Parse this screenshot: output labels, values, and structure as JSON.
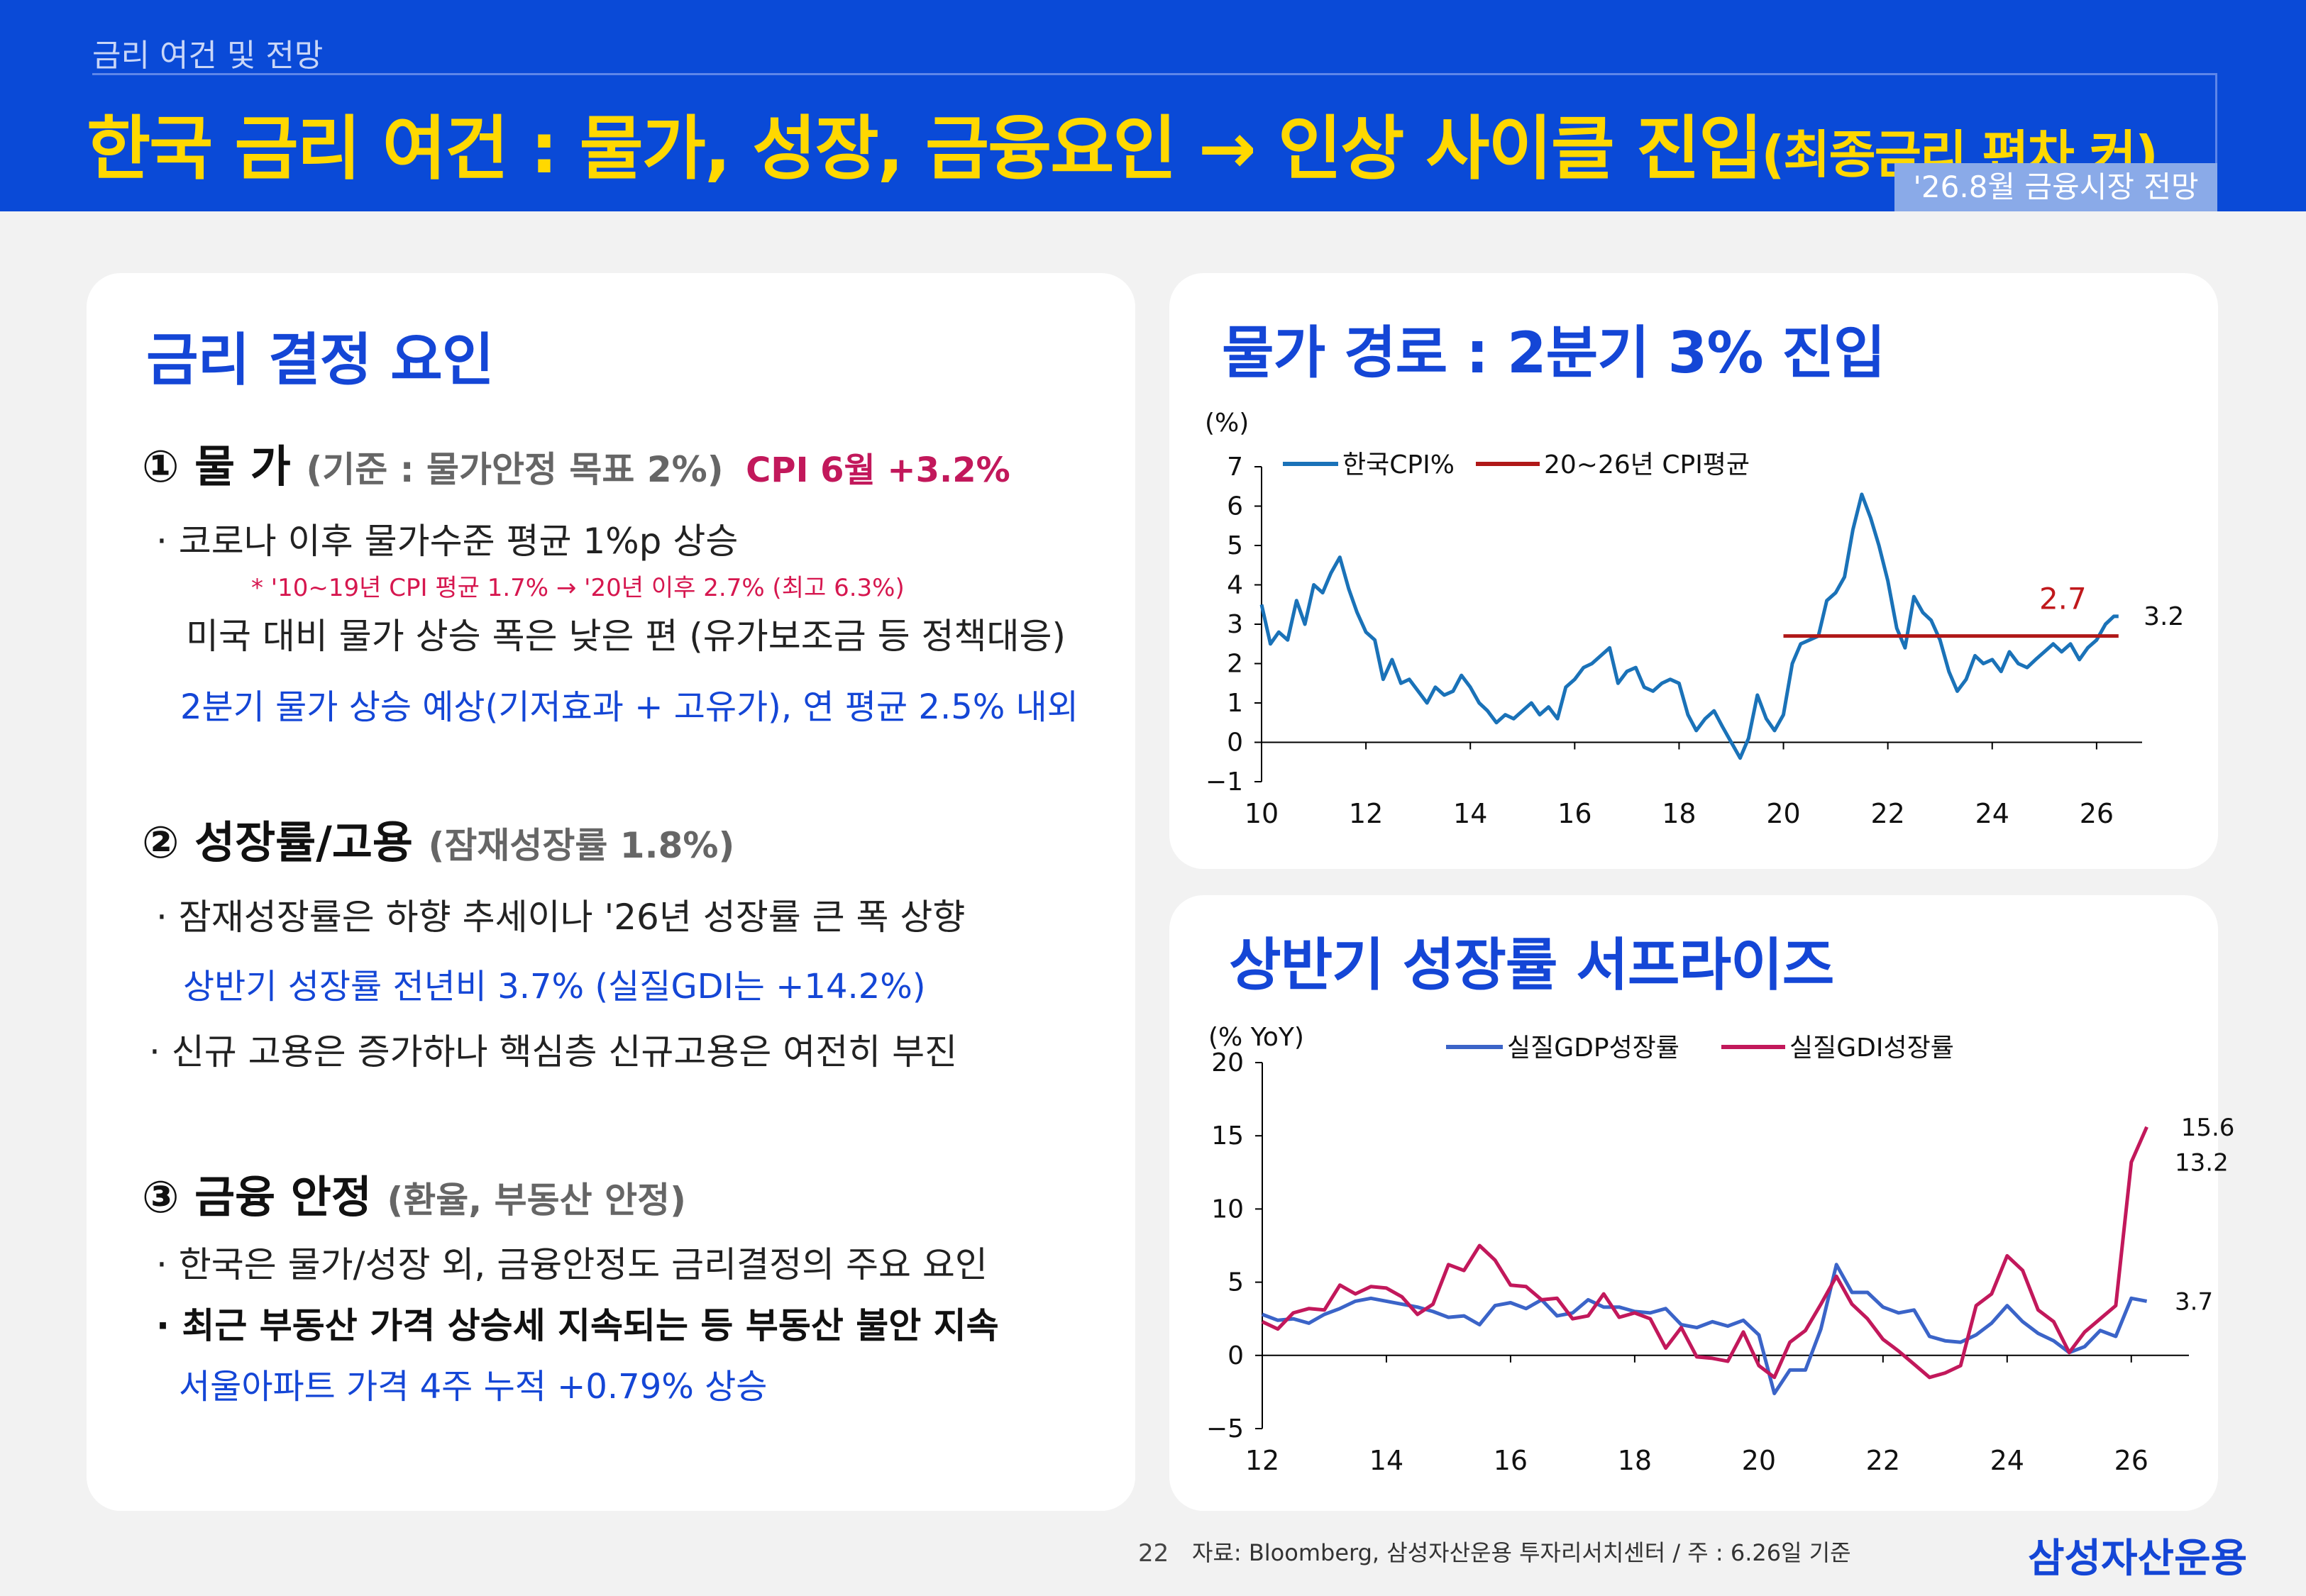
{
  "header": {
    "section": "금리 여건 및 전망",
    "title_main": "한국 금리 여건 : 물가, 성장, 금융요인 → 인상 사이클 진입",
    "title_sub": "(최종금리 편차 커)",
    "report_tag": "'26.8월 금융시장 전망"
  },
  "left_panel": {
    "title": "금리 결정 요인",
    "factor1": {
      "label": "① 물 가",
      "criterion": "(기준 : 물가안정 목표 2%)",
      "highlight": "CPI 6월  +3.2%",
      "bullet1": "· 코로나 이후 물가수준 평균 1%p 상승",
      "note": "* '10~19년 CPI 평균 1.7% → '20년 이후 2.7% (최고 6.3%)",
      "line2": "미국 대비 물가 상승 폭은 낮은 편 (유가보조금 등 정책대응)",
      "blue": "2분기 물가 상승 예상(기저효과 + 고유가), 연 평균 2.5% 내외"
    },
    "factor2": {
      "label": "② 성장률/고용",
      "criterion": "(잠재성장률 1.8%)",
      "bullet1": "· 잠재성장률은 하향 추세이나 '26년 성장률 큰 폭 상향",
      "blue": "상반기 성장률 전년비 3.7% (실질GDI는 +14.2%)",
      "bullet2": "· 신규 고용은 증가하나 핵심층 신규고용은 여전히 부진"
    },
    "factor3": {
      "label": "③ 금융 안정",
      "criterion": "(환율, 부동산 안정)",
      "bullet1": "· 한국은 물가/성장 외, 금융안정도 금리결정의 주요 요인",
      "bullet2": "· 최근 부동산 가격 상승세 지속되는 등 부동산 불안 지속",
      "blue": "서울아파트 가격 4주 누적 +0.79% 상승"
    }
  },
  "cpi_panel": {
    "title": "물가 경로 : 2분기 3% 진입"
  },
  "gdp_panel": {
    "title": "상반기 성장률 서프라이즈"
  },
  "chart_data": [
    {
      "type": "line",
      "ylabel": "(%)",
      "ylim": [
        -1,
        7
      ],
      "xlim": [
        10,
        26.6
      ],
      "x_ticks": [
        "10",
        "12",
        "14",
        "16",
        "18",
        "20",
        "22",
        "24",
        "26"
      ],
      "y_ticks": [
        "7",
        "6",
        "5",
        "4",
        "3",
        "2",
        "1",
        "0",
        "−1"
      ],
      "legend_position": "top",
      "colors": {
        "cpi": "#1a72b8",
        "avg": "#b01818"
      },
      "series": [
        {
          "name": "한국CPI%",
          "x": [
            10,
            10.17,
            10.33,
            10.5,
            10.67,
            10.83,
            11,
            11.17,
            11.33,
            11.5,
            11.67,
            11.83,
            12,
            12.17,
            12.33,
            12.5,
            12.67,
            12.83,
            13,
            13.17,
            13.33,
            13.5,
            13.67,
            13.83,
            14,
            14.17,
            14.33,
            14.5,
            14.67,
            14.83,
            15,
            15.17,
            15.33,
            15.5,
            15.67,
            15.83,
            16,
            16.17,
            16.33,
            16.5,
            16.67,
            16.83,
            17,
            17.17,
            17.33,
            17.5,
            17.67,
            17.83,
            18,
            18.17,
            18.33,
            18.5,
            18.67,
            18.83,
            19,
            19.17,
            19.33,
            19.5,
            19.67,
            19.83,
            20,
            20.17,
            20.33,
            20.5,
            20.67,
            20.83,
            21,
            21.17,
            21.33,
            21.5,
            21.67,
            21.83,
            22,
            22.17,
            22.33,
            22.5,
            22.67,
            22.83,
            23,
            23.17,
            23.33,
            23.5,
            23.67,
            23.83,
            24,
            24.17,
            24.33,
            24.5,
            24.67,
            24.83,
            25,
            25.17,
            25.33,
            25.5,
            25.67,
            25.83,
            26,
            26.17,
            26.33,
            26.42
          ],
          "values": [
            3.5,
            2.5,
            2.8,
            2.6,
            3.6,
            3.0,
            4.0,
            3.8,
            4.3,
            4.7,
            3.9,
            3.3,
            2.8,
            2.6,
            1.6,
            2.1,
            1.5,
            1.6,
            1.3,
            1.0,
            1.4,
            1.2,
            1.3,
            1.7,
            1.4,
            1.0,
            0.8,
            0.5,
            0.7,
            0.6,
            0.8,
            1.0,
            0.7,
            0.9,
            0.6,
            1.4,
            1.6,
            1.9,
            2.0,
            2.2,
            2.4,
            1.5,
            1.8,
            1.9,
            1.4,
            1.3,
            1.5,
            1.6,
            1.5,
            0.7,
            0.3,
            0.6,
            0.8,
            0.4,
            0.0,
            -0.4,
            0.1,
            1.2,
            0.6,
            0.3,
            0.7,
            2.0,
            2.5,
            2.6,
            2.7,
            3.6,
            3.8,
            4.2,
            5.4,
            6.3,
            5.7,
            5.0,
            4.1,
            2.9,
            2.4,
            3.7,
            3.3,
            3.1,
            2.6,
            1.8,
            1.3,
            1.6,
            2.2,
            2.0,
            2.1,
            1.8,
            2.3,
            2.0,
            1.9,
            2.1,
            2.3,
            2.5,
            2.3,
            2.5,
            2.1,
            2.4,
            2.6,
            3.0,
            3.2,
            3.2
          ]
        },
        {
          "name": "20~26년 CPI평균",
          "x": [
            20,
            26.42
          ],
          "values": [
            2.7,
            2.7
          ]
        }
      ],
      "annotations": [
        {
          "text": "2.7",
          "x": 24.9,
          "y": 3.6
        },
        {
          "text": "3.2",
          "x": 26.9,
          "y": 3.2
        }
      ]
    },
    {
      "type": "line",
      "ylabel": "(% YoY)",
      "ylim": [
        -5,
        20
      ],
      "xlim": [
        12,
        26.7
      ],
      "x_ticks": [
        "12",
        "14",
        "16",
        "18",
        "20",
        "22",
        "24",
        "26"
      ],
      "y_ticks": [
        "20",
        "15",
        "10",
        "5",
        "0",
        "−5"
      ],
      "legend_position": "top",
      "colors": {
        "gdp": "#3b64c8",
        "gdi": "#c2185b"
      },
      "series": [
        {
          "name": "실질GDP성장률",
          "x": [
            12,
            12.25,
            12.5,
            12.75,
            13,
            13.25,
            13.5,
            13.75,
            14,
            14.25,
            14.5,
            14.75,
            15,
            15.25,
            15.5,
            15.75,
            16,
            16.25,
            16.5,
            16.75,
            17,
            17.25,
            17.5,
            17.75,
            18,
            18.25,
            18.5,
            18.75,
            19,
            19.25,
            19.5,
            19.75,
            20,
            20.25,
            20.5,
            20.75,
            21,
            21.25,
            21.5,
            21.75,
            22,
            22.25,
            22.5,
            22.75,
            23,
            23.25,
            23.5,
            23.75,
            24,
            24.25,
            24.5,
            24.75,
            25,
            25.25,
            25.5,
            25.75,
            26,
            26.25
          ],
          "values": [
            2.8,
            2.4,
            2.5,
            2.2,
            2.8,
            3.2,
            3.7,
            3.9,
            3.7,
            3.5,
            3.3,
            3.0,
            2.6,
            2.7,
            2.1,
            3.4,
            3.6,
            3.2,
            3.8,
            2.7,
            2.9,
            3.8,
            3.3,
            3.3,
            3.0,
            2.9,
            3.2,
            2.1,
            1.9,
            2.3,
            2.0,
            2.4,
            1.4,
            -2.6,
            -1.0,
            -1.0,
            1.8,
            6.2,
            4.3,
            4.3,
            3.3,
            2.9,
            3.1,
            1.3,
            1.0,
            0.9,
            1.4,
            2.2,
            3.4,
            2.3,
            1.5,
            1.0,
            0.2,
            0.6,
            1.7,
            1.3,
            3.9,
            3.7
          ]
        },
        {
          "name": "실질GDI성장률",
          "x": [
            12,
            12.25,
            12.5,
            12.75,
            13,
            13.25,
            13.5,
            13.75,
            14,
            14.25,
            14.5,
            14.75,
            15,
            15.25,
            15.5,
            15.75,
            16,
            16.25,
            16.5,
            16.75,
            17,
            17.25,
            17.5,
            17.75,
            18,
            18.25,
            18.5,
            18.75,
            19,
            19.25,
            19.5,
            19.75,
            20,
            20.25,
            20.5,
            20.75,
            21,
            21.25,
            21.5,
            21.75,
            22,
            22.25,
            22.5,
            22.75,
            23,
            23.25,
            23.5,
            23.75,
            24,
            24.25,
            24.5,
            24.75,
            25,
            25.25,
            25.5,
            25.75,
            26,
            26.25
          ],
          "values": [
            2.3,
            1.8,
            2.9,
            3.2,
            3.1,
            4.8,
            4.2,
            4.7,
            4.6,
            4.0,
            2.8,
            3.5,
            6.2,
            5.8,
            7.5,
            6.5,
            4.8,
            4.7,
            3.8,
            3.9,
            2.5,
            2.7,
            4.2,
            2.6,
            2.9,
            2.5,
            0.5,
            1.9,
            -0.1,
            -0.2,
            -0.4,
            1.6,
            -0.7,
            -1.5,
            0.9,
            1.7,
            3.5,
            5.4,
            3.5,
            2.5,
            1.1,
            0.3,
            -0.6,
            -1.5,
            -1.2,
            -0.7,
            3.4,
            4.2,
            6.8,
            5.8,
            3.1,
            2.3,
            0.2,
            1.6,
            2.5,
            3.4,
            13.2,
            15.6
          ]
        }
      ],
      "annotations": [
        {
          "text": "15.6",
          "x": 26.8,
          "y": 15.6
        },
        {
          "text": "13.2",
          "x": 26.7,
          "y": 13.2
        },
        {
          "text": "3.7",
          "x": 26.7,
          "y": 3.7
        }
      ]
    }
  ],
  "footer": {
    "page": "22",
    "source": "자료: Bloomberg, 삼성자산운용 투자리서치센터 / 주 : 6.26일 기준",
    "brand": "삼성자산운용"
  }
}
